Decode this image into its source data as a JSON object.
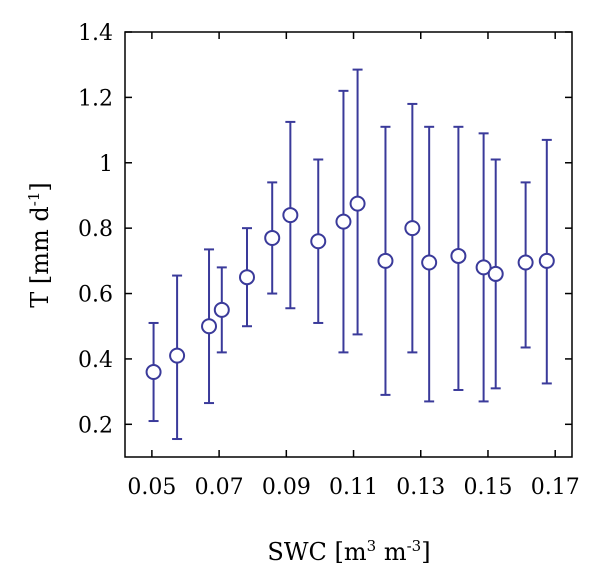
{
  "chart_data": {
    "type": "scatter",
    "xlabel": "SWC [m³ m⁻³]",
    "ylabel": "T [mm d⁻¹]",
    "xlabel_parts": {
      "base": "SWC [m",
      "sup1": "3",
      "mid": " m",
      "sup2": "-3",
      "end": "]"
    },
    "ylabel_parts": {
      "base": "T [mm d",
      "sup": "-1",
      "end": "]"
    },
    "xlim": [
      0.042,
      0.175
    ],
    "ylim": [
      0.1,
      1.4
    ],
    "xticks": [
      0.05,
      0.07,
      0.09,
      0.11,
      0.13,
      0.15,
      0.17
    ],
    "xtick_labels": [
      "0.05",
      "0.07",
      "0.09",
      "0.11",
      "0.13",
      "0.15",
      "0.17"
    ],
    "yticks": [
      0.2,
      0.4,
      0.6,
      0.8,
      1.0,
      1.2,
      1.4
    ],
    "ytick_labels": [
      "0.2",
      "0.4",
      "0.6",
      "0.8",
      "1",
      "1.2",
      "1.4"
    ],
    "grid": false,
    "marker_color": "#3a3a9a",
    "series": [
      {
        "marker": "open-circle",
        "points": [
          {
            "x": 0.0505,
            "y": 0.36,
            "ylow": 0.21,
            "yhigh": 0.51
          },
          {
            "x": 0.0575,
            "y": 0.41,
            "ylow": 0.155,
            "yhigh": 0.655
          },
          {
            "x": 0.067,
            "y": 0.5,
            "ylow": 0.265,
            "yhigh": 0.735
          },
          {
            "x": 0.0708,
            "y": 0.55,
            "ylow": 0.42,
            "yhigh": 0.68
          },
          {
            "x": 0.0783,
            "y": 0.65,
            "ylow": 0.5,
            "yhigh": 0.8
          },
          {
            "x": 0.0858,
            "y": 0.77,
            "ylow": 0.6,
            "yhigh": 0.94
          },
          {
            "x": 0.0912,
            "y": 0.84,
            "ylow": 0.555,
            "yhigh": 1.125
          },
          {
            "x": 0.0995,
            "y": 0.76,
            "ylow": 0.51,
            "yhigh": 1.01
          },
          {
            "x": 0.107,
            "y": 0.82,
            "ylow": 0.42,
            "yhigh": 1.22
          },
          {
            "x": 0.1112,
            "y": 0.875,
            "ylow": 0.475,
            "yhigh": 1.285
          },
          {
            "x": 0.1195,
            "y": 0.7,
            "ylow": 0.29,
            "yhigh": 1.11
          },
          {
            "x": 0.1275,
            "y": 0.8,
            "ylow": 0.42,
            "yhigh": 1.18
          },
          {
            "x": 0.1325,
            "y": 0.695,
            "ylow": 0.27,
            "yhigh": 1.11
          },
          {
            "x": 0.1412,
            "y": 0.715,
            "ylow": 0.305,
            "yhigh": 1.11
          },
          {
            "x": 0.1487,
            "y": 0.68,
            "ylow": 0.27,
            "yhigh": 1.09
          },
          {
            "x": 0.1523,
            "y": 0.66,
            "ylow": 0.31,
            "yhigh": 1.01
          },
          {
            "x": 0.1612,
            "y": 0.695,
            "ylow": 0.435,
            "yhigh": 0.94
          },
          {
            "x": 0.1675,
            "y": 0.7,
            "ylow": 0.325,
            "yhigh": 1.07
          }
        ]
      }
    ]
  }
}
